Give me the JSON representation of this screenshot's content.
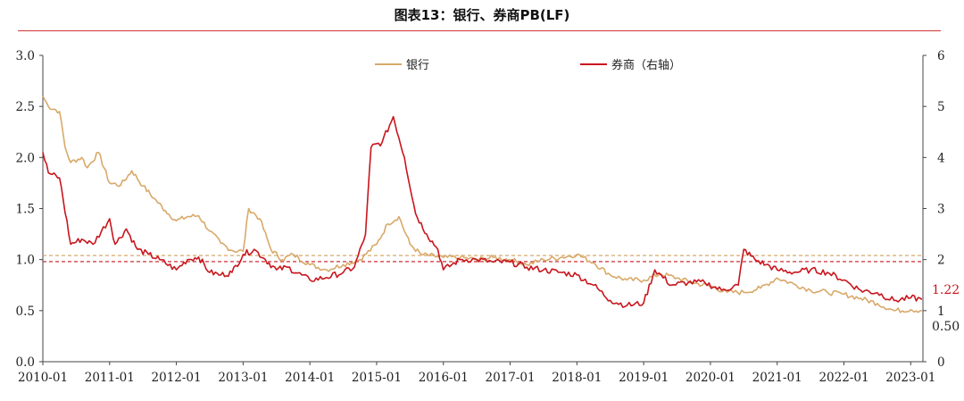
{
  "header": {
    "title": "图表13：银行、券商PB(LF)"
  },
  "chart_data": {
    "type": "line",
    "x_tick_labels": [
      "2010-01",
      "2011-01",
      "2012-01",
      "2013-01",
      "2014-01",
      "2015-01",
      "2016-01",
      "2017-01",
      "2018-01",
      "2019-01",
      "2020-01",
      "2021-01",
      "2022-01",
      "2023-01"
    ],
    "y_left_ticks": [
      "0.0",
      "0.5",
      "1.0",
      "1.5",
      "2.0",
      "2.5",
      "3.0"
    ],
    "y_right_ticks": [
      "0",
      "1",
      "2",
      "3",
      "4",
      "5",
      "6"
    ],
    "ylim_left": [
      0,
      3
    ],
    "ylim_right": [
      0,
      6
    ],
    "grid": false,
    "legend_placement": "top-center",
    "series": [
      {
        "name": "银行",
        "axis": "left",
        "color": "#d8a96a",
        "points": [
          [
            "2010-01",
            2.6
          ],
          [
            "2010-02",
            2.5
          ],
          [
            "2010-04",
            2.45
          ],
          [
            "2010-05",
            2.1
          ],
          [
            "2010-06",
            1.95
          ],
          [
            "2010-08",
            2.0
          ],
          [
            "2010-09",
            1.9
          ],
          [
            "2010-11",
            2.05
          ],
          [
            "2011-01",
            1.75
          ],
          [
            "2011-03",
            1.73
          ],
          [
            "2011-05",
            1.87
          ],
          [
            "2011-07",
            1.72
          ],
          [
            "2011-09",
            1.6
          ],
          [
            "2011-11",
            1.48
          ],
          [
            "2012-01",
            1.38
          ],
          [
            "2012-03",
            1.42
          ],
          [
            "2012-05",
            1.43
          ],
          [
            "2012-07",
            1.28
          ],
          [
            "2012-09",
            1.16
          ],
          [
            "2012-11",
            1.09
          ],
          [
            "2013-01",
            1.08
          ],
          [
            "2013-02",
            1.5
          ],
          [
            "2013-04",
            1.4
          ],
          [
            "2013-06",
            1.1
          ],
          [
            "2013-08",
            1.0
          ],
          [
            "2013-10",
            1.05
          ],
          [
            "2014-01",
            0.95
          ],
          [
            "2014-04",
            0.9
          ],
          [
            "2014-07",
            0.95
          ],
          [
            "2014-10",
            1.0
          ],
          [
            "2015-01",
            1.15
          ],
          [
            "2015-03",
            1.35
          ],
          [
            "2015-05",
            1.42
          ],
          [
            "2015-07",
            1.15
          ],
          [
            "2015-09",
            1.05
          ],
          [
            "2016-01",
            1.02
          ],
          [
            "2016-04",
            1.02
          ],
          [
            "2016-07",
            1.0
          ],
          [
            "2016-10",
            1.02
          ],
          [
            "2017-01",
            1.0
          ],
          [
            "2017-04",
            0.95
          ],
          [
            "2017-07",
            1.0
          ],
          [
            "2017-10",
            1.02
          ],
          [
            "2018-01",
            1.05
          ],
          [
            "2018-04",
            0.97
          ],
          [
            "2018-07",
            0.85
          ],
          [
            "2018-10",
            0.8
          ],
          [
            "2019-01",
            0.8
          ],
          [
            "2019-04",
            0.86
          ],
          [
            "2019-07",
            0.82
          ],
          [
            "2019-10",
            0.77
          ],
          [
            "2020-01",
            0.74
          ],
          [
            "2020-04",
            0.68
          ],
          [
            "2020-07",
            0.68
          ],
          [
            "2020-10",
            0.72
          ],
          [
            "2021-01",
            0.82
          ],
          [
            "2021-04",
            0.76
          ],
          [
            "2021-07",
            0.7
          ],
          [
            "2021-10",
            0.68
          ],
          [
            "2022-01",
            0.66
          ],
          [
            "2022-04",
            0.62
          ],
          [
            "2022-07",
            0.57
          ],
          [
            "2022-10",
            0.5
          ],
          [
            "2023-01",
            0.51
          ],
          [
            "2023-03",
            0.5
          ]
        ]
      },
      {
        "name": "券商（右轴）",
        "axis": "right",
        "color": "#c8161d",
        "points": [
          [
            "2010-01",
            4.1
          ],
          [
            "2010-02",
            3.7
          ],
          [
            "2010-04",
            3.6
          ],
          [
            "2010-06",
            2.3
          ],
          [
            "2010-08",
            2.4
          ],
          [
            "2010-10",
            2.3
          ],
          [
            "2011-01",
            2.8
          ],
          [
            "2011-02",
            2.3
          ],
          [
            "2011-04",
            2.6
          ],
          [
            "2011-06",
            2.2
          ],
          [
            "2011-08",
            2.1
          ],
          [
            "2011-10",
            2.0
          ],
          [
            "2012-01",
            1.8
          ],
          [
            "2012-03",
            2.0
          ],
          [
            "2012-05",
            2.05
          ],
          [
            "2012-07",
            1.75
          ],
          [
            "2012-09",
            1.7
          ],
          [
            "2012-11",
            1.75
          ],
          [
            "2013-01",
            2.1
          ],
          [
            "2013-03",
            2.2
          ],
          [
            "2013-05",
            2.0
          ],
          [
            "2013-07",
            1.8
          ],
          [
            "2013-09",
            1.85
          ],
          [
            "2014-01",
            1.6
          ],
          [
            "2014-04",
            1.65
          ],
          [
            "2014-07",
            1.75
          ],
          [
            "2014-09",
            1.85
          ],
          [
            "2014-11",
            2.5
          ],
          [
            "2014-12",
            4.2
          ],
          [
            "2015-02",
            4.3
          ],
          [
            "2015-04",
            4.8
          ],
          [
            "2015-06",
            4.0
          ],
          [
            "2015-08",
            2.9
          ],
          [
            "2015-10",
            2.5
          ],
          [
            "2015-12",
            2.2
          ],
          [
            "2016-01",
            1.8
          ],
          [
            "2016-04",
            2.0
          ],
          [
            "2016-07",
            2.0
          ],
          [
            "2016-10",
            1.95
          ],
          [
            "2017-01",
            1.95
          ],
          [
            "2017-04",
            1.85
          ],
          [
            "2017-07",
            1.8
          ],
          [
            "2017-10",
            1.75
          ],
          [
            "2018-01",
            1.7
          ],
          [
            "2018-04",
            1.5
          ],
          [
            "2018-07",
            1.2
          ],
          [
            "2018-10",
            1.1
          ],
          [
            "2019-01",
            1.15
          ],
          [
            "2019-03",
            1.8
          ],
          [
            "2019-06",
            1.5
          ],
          [
            "2019-09",
            1.55
          ],
          [
            "2019-12",
            1.55
          ],
          [
            "2020-03",
            1.4
          ],
          [
            "2020-06",
            1.5
          ],
          [
            "2020-07",
            2.2
          ],
          [
            "2020-09",
            2.0
          ],
          [
            "2020-11",
            1.9
          ],
          [
            "2021-01",
            1.8
          ],
          [
            "2021-04",
            1.75
          ],
          [
            "2021-07",
            1.8
          ],
          [
            "2021-10",
            1.75
          ],
          [
            "2022-01",
            1.6
          ],
          [
            "2022-04",
            1.4
          ],
          [
            "2022-07",
            1.35
          ],
          [
            "2022-10",
            1.2
          ],
          [
            "2023-01",
            1.25
          ],
          [
            "2023-03",
            1.22
          ]
        ]
      }
    ],
    "reference_lines": [
      {
        "axis": "left",
        "value": 1.04,
        "color": "#d8a96a",
        "style": "dashed"
      },
      {
        "axis": "right",
        "value": 1.96,
        "color": "#c8161d",
        "style": "dashed"
      }
    ],
    "annotations": [
      {
        "text": "1.22",
        "series": "券商（右轴）",
        "color": "#c8161d"
      },
      {
        "text": "0.50",
        "series": "银行",
        "color": "#222222"
      }
    ]
  }
}
